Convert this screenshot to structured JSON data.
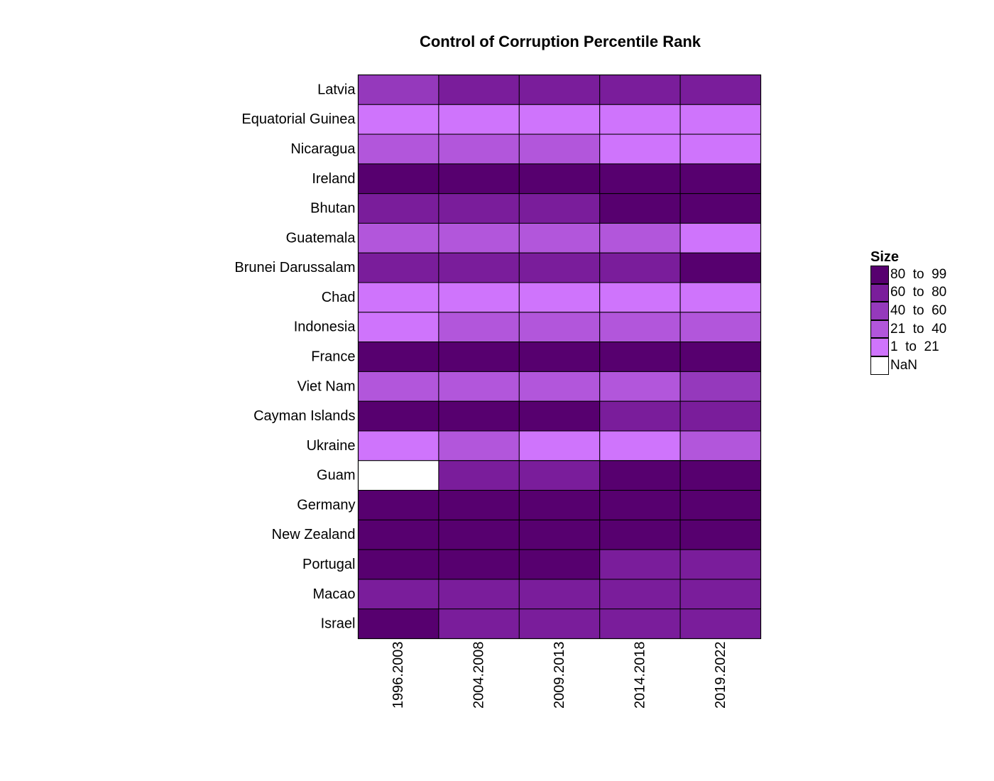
{
  "chart_data": {
    "type": "heatmap",
    "title": "Control of Corruption Percentile Rank",
    "xlabel": "",
    "ylabel": "",
    "x_categories": [
      "1996.2003",
      "2004.2008",
      "2009.2013",
      "2014.2018",
      "2019.2022"
    ],
    "y_categories": [
      "Latvia",
      "Equatorial Guinea",
      "Nicaragua",
      "Ireland",
      "Bhutan",
      "Guatemala",
      "Brunei Darussalam",
      "Chad",
      "Indonesia",
      "France",
      "Viet Nam",
      "Cayman Islands",
      "Ukraine",
      "Guam",
      "Germany",
      "New Zealand",
      "Portugal",
      "Macao",
      "Israel"
    ],
    "legend": {
      "title": "Size",
      "placement": "right",
      "bins": [
        {
          "label": "80  to  99",
          "color": "#57006F"
        },
        {
          "label": "60  to  80",
          "color": "#7A1D9B"
        },
        {
          "label": "40  to  60",
          "color": "#9539BC"
        },
        {
          "label": "21  to  40",
          "color": "#B256DB"
        },
        {
          "label": "1  to  21",
          "color": "#CF74FC"
        },
        {
          "label": "NaN",
          "color": "#FFFFFF"
        }
      ]
    },
    "cells": [
      [
        "40  to  60",
        "60  to  80",
        "60  to  80",
        "60  to  80",
        "60  to  80"
      ],
      [
        "1  to  21",
        "1  to  21",
        "1  to  21",
        "1  to  21",
        "1  to  21"
      ],
      [
        "21  to  40",
        "21  to  40",
        "21  to  40",
        "1  to  21",
        "1  to  21"
      ],
      [
        "80  to  99",
        "80  to  99",
        "80  to  99",
        "80  to  99",
        "80  to  99"
      ],
      [
        "60  to  80",
        "60  to  80",
        "60  to  80",
        "80  to  99",
        "80  to  99"
      ],
      [
        "21  to  40",
        "21  to  40",
        "21  to  40",
        "21  to  40",
        "1  to  21"
      ],
      [
        "60  to  80",
        "60  to  80",
        "60  to  80",
        "60  to  80",
        "80  to  99"
      ],
      [
        "1  to  21",
        "1  to  21",
        "1  to  21",
        "1  to  21",
        "1  to  21"
      ],
      [
        "1  to  21",
        "21  to  40",
        "21  to  40",
        "21  to  40",
        "21  to  40"
      ],
      [
        "80  to  99",
        "80  to  99",
        "80  to  99",
        "80  to  99",
        "80  to  99"
      ],
      [
        "21  to  40",
        "21  to  40",
        "21  to  40",
        "21  to  40",
        "40  to  60"
      ],
      [
        "80  to  99",
        "80  to  99",
        "80  to  99",
        "60  to  80",
        "60  to  80"
      ],
      [
        "1  to  21",
        "21  to  40",
        "1  to  21",
        "1  to  21",
        "21  to  40"
      ],
      [
        "NaN",
        "60  to  80",
        "60  to  80",
        "80  to  99",
        "80  to  99"
      ],
      [
        "80  to  99",
        "80  to  99",
        "80  to  99",
        "80  to  99",
        "80  to  99"
      ],
      [
        "80  to  99",
        "80  to  99",
        "80  to  99",
        "80  to  99",
        "80  to  99"
      ],
      [
        "80  to  99",
        "80  to  99",
        "80  to  99",
        "60  to  80",
        "60  to  80"
      ],
      [
        "60  to  80",
        "60  to  80",
        "60  to  80",
        "60  to  80",
        "60  to  80"
      ],
      [
        "80  to  99",
        "60  to  80",
        "60  to  80",
        "60  to  80",
        "60  to  80"
      ]
    ]
  }
}
